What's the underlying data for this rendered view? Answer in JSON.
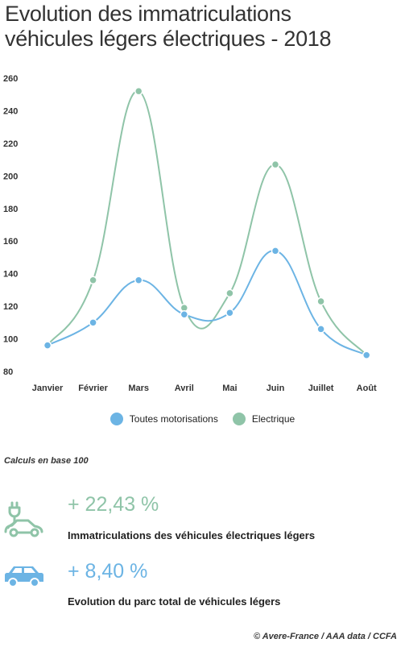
{
  "title_line1": "Evolution des immatriculations",
  "title_line2": "véhicules légers électriques - 2018",
  "chart_data": {
    "type": "line",
    "title": "Evolution des immatriculations véhicules légers électriques - 2018",
    "categories": [
      "Janvier",
      "Février",
      "Mars",
      "Avril",
      "Mai",
      "Juin",
      "Juillet",
      "Août"
    ],
    "series": [
      {
        "name": "Toutes motorisations",
        "color": "#6cb4e4",
        "values": [
          96,
          110,
          136,
          115,
          116,
          154,
          106,
          90
        ]
      },
      {
        "name": "Electrique",
        "color": "#8fc4a8",
        "values": [
          96,
          136,
          252,
          119,
          128,
          207,
          123,
          90
        ]
      }
    ],
    "ylim": [
      80,
      260
    ],
    "yticks": [
      "80",
      "100",
      "120",
      "140",
      "160",
      "180",
      "200",
      "220",
      "240",
      "260"
    ],
    "grid": false,
    "legend": "bottom"
  },
  "note": "Calculs en base 100",
  "kpis": [
    {
      "value": "+ 22,43 %",
      "label": "Immatriculations des véhicules électriques légers",
      "color": "#8fc4a8",
      "icon": "electric-car-icon"
    },
    {
      "value": "+ 8,40 %",
      "label": "Evolution du parc total de véhicules légers",
      "color": "#6cb4e4",
      "icon": "car-icon"
    }
  ],
  "source": "© Avere-France / AAA data / CCFA"
}
